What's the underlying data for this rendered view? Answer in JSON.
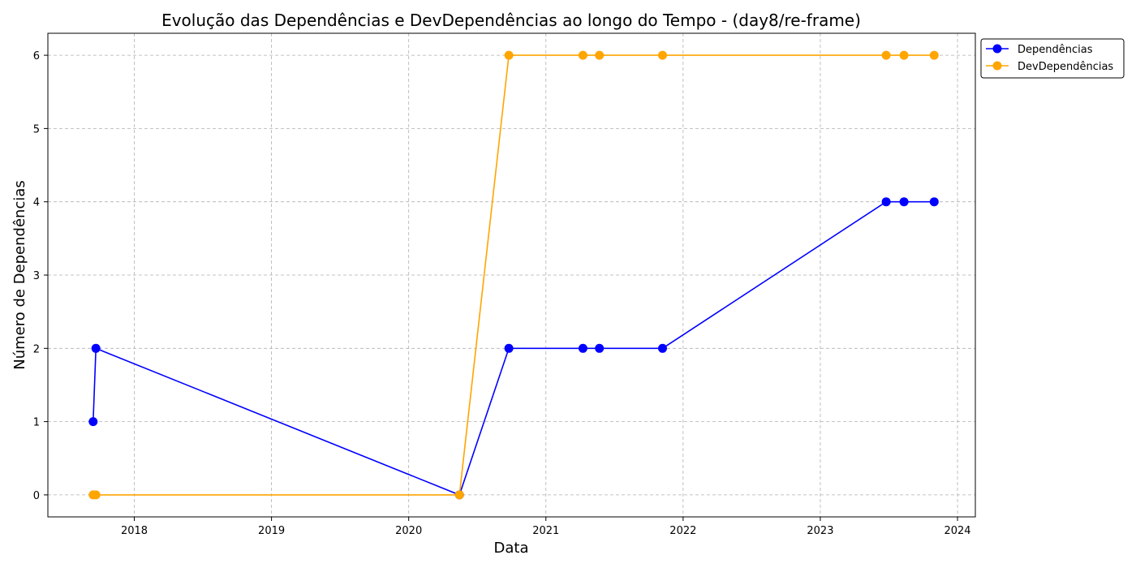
{
  "chart_data": {
    "type": "line",
    "title": "Evolução das Dependências e DevDependências ao longo do Tempo - (day8/re-frame)",
    "xlabel": "Data",
    "ylabel": "Número de Dependências",
    "xlim": [
      2017.37,
      2024.13
    ],
    "ylim": [
      -0.3,
      6.3
    ],
    "xticks": [
      2018,
      2019,
      2020,
      2021,
      2022,
      2023,
      2024
    ],
    "yticks": [
      0,
      1,
      2,
      3,
      4,
      5,
      6
    ],
    "grid": true,
    "legend_position": "outside-top-right",
    "x": [
      2017.7,
      2017.72,
      2020.37,
      2020.73,
      2021.27,
      2021.39,
      2021.85,
      2023.48,
      2023.61,
      2023.83
    ],
    "series": [
      {
        "name": "Dependências",
        "color": "#0000ff",
        "values": [
          1,
          2,
          0,
          2,
          2,
          2,
          2,
          4,
          4,
          4
        ]
      },
      {
        "name": "DevDependências",
        "color": "#ffa500",
        "values": [
          0,
          0,
          0,
          6,
          6,
          6,
          6,
          6,
          6,
          6
        ]
      }
    ]
  }
}
